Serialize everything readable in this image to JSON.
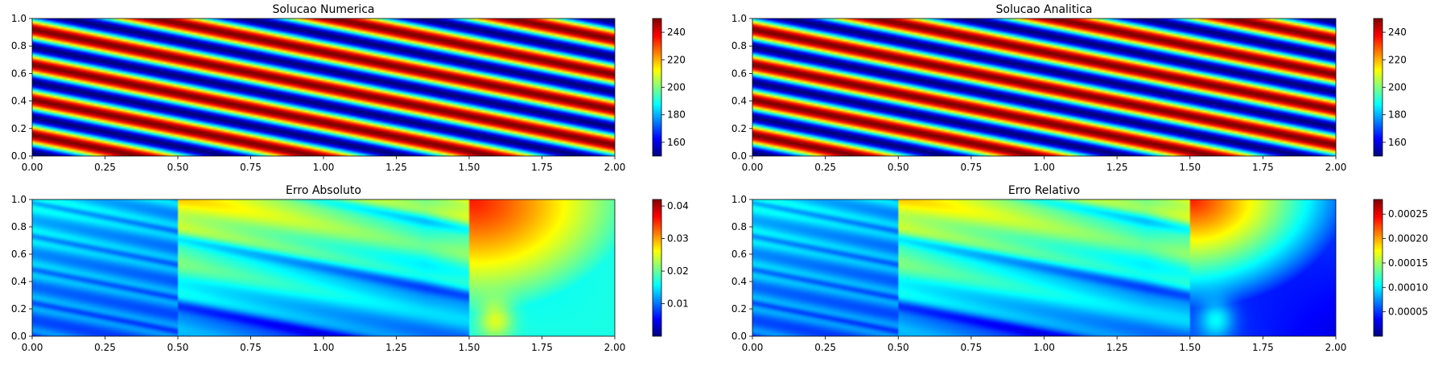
{
  "colormap": "jet",
  "chart_data": [
    {
      "type": "heatmap",
      "title": "Solucao Numerica",
      "xlim": [
        0,
        2
      ],
      "ylim": [
        0,
        1
      ],
      "xticks": [
        "0.00",
        "0.25",
        "0.50",
        "0.75",
        "1.00",
        "1.25",
        "1.50",
        "1.75",
        "2.00"
      ],
      "yticks": [
        "0.0",
        "0.2",
        "0.4",
        "0.6",
        "0.8",
        "1.0"
      ],
      "field": "wave",
      "value_range": [
        150,
        250
      ],
      "colorbar_ticks": [
        {
          "value": 160,
          "label": "160"
        },
        {
          "value": 180,
          "label": "180"
        },
        {
          "value": 200,
          "label": "200"
        },
        {
          "value": 220,
          "label": "220"
        },
        {
          "value": 240,
          "label": "240"
        }
      ]
    },
    {
      "type": "heatmap",
      "title": "Solucao Analitica",
      "xlim": [
        0,
        2
      ],
      "ylim": [
        0,
        1
      ],
      "xticks": [
        "0.00",
        "0.25",
        "0.50",
        "0.75",
        "1.00",
        "1.25",
        "1.50",
        "1.75",
        "2.00"
      ],
      "yticks": [
        "0.0",
        "0.2",
        "0.4",
        "0.6",
        "0.8",
        "1.0"
      ],
      "field": "wave",
      "value_range": [
        150,
        250
      ],
      "colorbar_ticks": [
        {
          "value": 160,
          "label": "160"
        },
        {
          "value": 180,
          "label": "180"
        },
        {
          "value": 200,
          "label": "200"
        },
        {
          "value": 220,
          "label": "220"
        },
        {
          "value": 240,
          "label": "240"
        }
      ]
    },
    {
      "type": "heatmap",
      "title": "Erro Absoluto",
      "xlim": [
        0,
        2
      ],
      "ylim": [
        0,
        1
      ],
      "xticks": [
        "0.00",
        "0.25",
        "0.50",
        "0.75",
        "1.00",
        "1.25",
        "1.50",
        "1.75",
        "2.00"
      ],
      "yticks": [
        "0.0",
        "0.2",
        "0.4",
        "0.6",
        "0.8",
        "1.0"
      ],
      "field": "error",
      "value_range": [
        0,
        0.042
      ],
      "block_edges_x": [
        0.5,
        1.5
      ],
      "colorbar_ticks": [
        {
          "value": 0.01,
          "label": "0.01"
        },
        {
          "value": 0.02,
          "label": "0.02"
        },
        {
          "value": 0.03,
          "label": "0.03"
        },
        {
          "value": 0.04,
          "label": "0.04"
        }
      ]
    },
    {
      "type": "heatmap",
      "title": "Erro Relativo",
      "xlim": [
        0,
        2
      ],
      "ylim": [
        0,
        1
      ],
      "xticks": [
        "0.00",
        "0.25",
        "0.50",
        "0.75",
        "1.00",
        "1.25",
        "1.50",
        "1.75",
        "2.00"
      ],
      "yticks": [
        "0.0",
        "0.2",
        "0.4",
        "0.6",
        "0.8",
        "1.0"
      ],
      "field": "error",
      "value_range": [
        0,
        0.00028
      ],
      "block_edges_x": [
        0.5,
        1.5
      ],
      "colorbar_ticks": [
        {
          "value": 5e-05,
          "label": "0.00005"
        },
        {
          "value": 0.0001,
          "label": "0.00010"
        },
        {
          "value": 0.00015,
          "label": "0.00015"
        },
        {
          "value": 0.0002,
          "label": "0.00020"
        },
        {
          "value": 0.00025,
          "label": "0.00025"
        }
      ]
    }
  ]
}
